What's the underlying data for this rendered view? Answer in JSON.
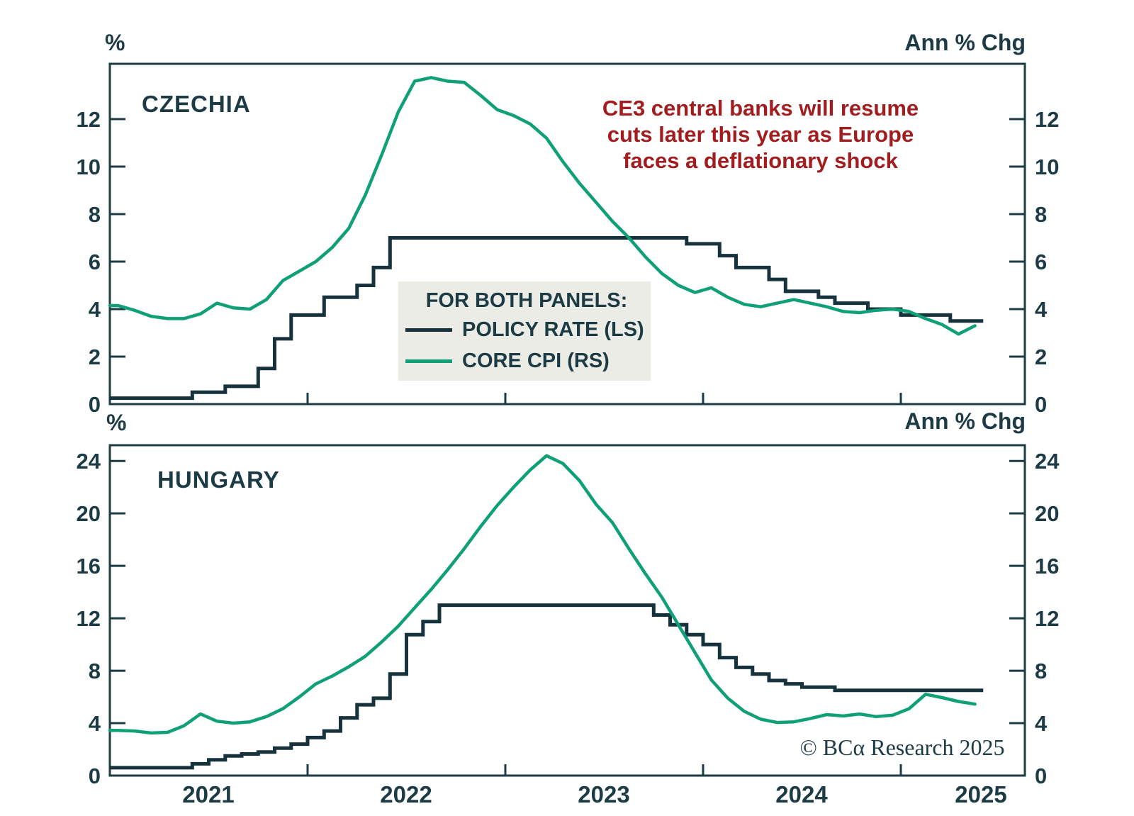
{
  "units": {
    "top_left": "%",
    "top_right": "Ann % Chg",
    "bottom_left": "%",
    "bottom_right": "Ann % Chg"
  },
  "annotation": {
    "lines": [
      "CE3 central banks will resume",
      "cuts later this year as Europe",
      "faces a deflationary shock"
    ],
    "color": "#A21D1F"
  },
  "legend": {
    "title": "FOR BOTH PANELS:",
    "items": [
      {
        "label": "POLICY RATE (LS)",
        "color": "#16323C"
      },
      {
        "label": "CORE CPI (RS)",
        "color": "#0FA077"
      }
    ]
  },
  "copyright": "© BCα Research 2025",
  "colors": {
    "frame": "#1C3B44",
    "text": "#1C3B44",
    "policy_line": "#16323C",
    "cpi_line": "#0FA077",
    "background": "#FFFFFF",
    "legend_bg": "#ECECE6"
  },
  "x_axis": {
    "start_year": 2021,
    "months_per_point": 1,
    "year_labels": [
      "2021",
      "2022",
      "2023",
      "2024",
      "2025"
    ],
    "year_tick_months": [
      12,
      24,
      36,
      48
    ]
  },
  "chart_data": [
    {
      "type": "line",
      "title": "CZECHIA",
      "panel": "top",
      "unit_left": "%",
      "unit_right": "Ann % Chg",
      "x_start": "2021-01",
      "x_end": "2025-05",
      "ylim": [
        0,
        14.33
      ],
      "yticks": [
        0,
        2,
        4,
        6,
        8,
        10,
        12
      ],
      "grid": false,
      "series": [
        {
          "name": "POLICY RATE (LS)",
          "axis": "left",
          "style": "step",
          "color": "#16323C",
          "values": [
            0.25,
            0.25,
            0.25,
            0.25,
            0.25,
            0.5,
            0.5,
            0.75,
            0.75,
            1.5,
            2.75,
            3.75,
            3.75,
            4.5,
            4.5,
            5.0,
            5.75,
            7.0,
            7.0,
            7.0,
            7.0,
            7.0,
            7.0,
            7.0,
            7.0,
            7.0,
            7.0,
            7.0,
            7.0,
            7.0,
            7.0,
            7.0,
            7.0,
            7.0,
            7.0,
            6.75,
            6.75,
            6.25,
            5.75,
            5.75,
            5.25,
            4.75,
            4.75,
            4.5,
            4.25,
            4.25,
            4.0,
            4.0,
            3.75,
            3.75,
            3.75,
            3.5,
            3.5
          ]
        },
        {
          "name": "CORE CPI (RS)",
          "axis": "right",
          "style": "line",
          "color": "#0FA077",
          "values": [
            4.15,
            3.95,
            3.7,
            3.6,
            3.6,
            3.8,
            4.25,
            4.05,
            4.0,
            4.4,
            5.2,
            5.6,
            6.0,
            6.6,
            7.4,
            8.8,
            10.5,
            12.3,
            13.6,
            13.75,
            13.6,
            13.55,
            13.0,
            12.4,
            12.15,
            11.8,
            11.2,
            10.2,
            9.3,
            8.5,
            7.7,
            7.0,
            6.2,
            5.5,
            5.0,
            4.7,
            4.9,
            4.5,
            4.2,
            4.1,
            4.25,
            4.4,
            4.25,
            4.1,
            3.9,
            3.85,
            3.95,
            4.0,
            3.9,
            3.6,
            3.35,
            2.95,
            3.3
          ]
        }
      ]
    },
    {
      "type": "line",
      "title": "HUNGARY",
      "panel": "bottom",
      "unit_left": "%",
      "unit_right": "Ann % Chg",
      "x_start": "2021-01",
      "x_end": "2025-05",
      "ylim": [
        0,
        25.2
      ],
      "yticks": [
        0,
        4,
        8,
        12,
        16,
        20,
        24
      ],
      "grid": false,
      "series": [
        {
          "name": "POLICY RATE (LS)",
          "axis": "left",
          "style": "step",
          "color": "#16323C",
          "values": [
            0.6,
            0.6,
            0.6,
            0.6,
            0.6,
            0.9,
            1.2,
            1.5,
            1.65,
            1.8,
            2.1,
            2.4,
            2.9,
            3.4,
            4.4,
            5.4,
            5.9,
            7.75,
            10.75,
            11.75,
            13.0,
            13.0,
            13.0,
            13.0,
            13.0,
            13.0,
            13.0,
            13.0,
            13.0,
            13.0,
            13.0,
            13.0,
            13.0,
            12.25,
            11.5,
            10.75,
            10.0,
            9.0,
            8.25,
            7.75,
            7.25,
            7.0,
            6.75,
            6.75,
            6.5,
            6.5,
            6.5,
            6.5,
            6.5,
            6.5,
            6.5,
            6.5,
            6.5
          ]
        },
        {
          "name": "CORE CPI (RS)",
          "axis": "right",
          "style": "line",
          "color": "#0FA077",
          "values": [
            3.45,
            3.4,
            3.25,
            3.3,
            3.8,
            4.7,
            4.15,
            4.0,
            4.1,
            4.5,
            5.1,
            6.0,
            7.0,
            7.6,
            8.3,
            9.1,
            10.2,
            11.4,
            12.8,
            14.2,
            15.7,
            17.3,
            19.0,
            20.6,
            22.0,
            23.3,
            24.4,
            23.8,
            22.5,
            20.7,
            19.3,
            17.3,
            15.4,
            13.6,
            11.5,
            9.4,
            7.3,
            5.9,
            4.9,
            4.3,
            4.05,
            4.1,
            4.35,
            4.65,
            4.55,
            4.7,
            4.5,
            4.6,
            5.1,
            6.2,
            5.95,
            5.65,
            5.45
          ]
        }
      ]
    }
  ]
}
